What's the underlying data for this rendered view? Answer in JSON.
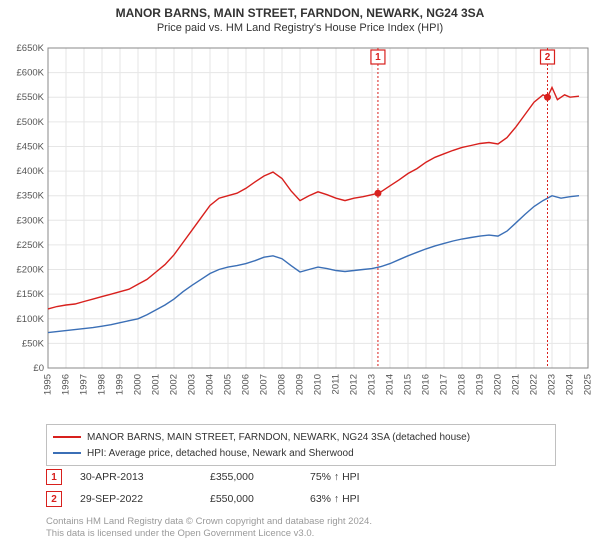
{
  "title": "MANOR BARNS, MAIN STREET, FARNDON, NEWARK, NG24 3SA",
  "subtitle": "Price paid vs. HM Land Registry's House Price Index (HPI)",
  "chart": {
    "type": "line",
    "background_color": "#ffffff",
    "grid_color": "#e6e6e6",
    "axis_color": "#888888",
    "y": {
      "min": 0,
      "max": 650000,
      "step": 50000,
      "labels": [
        "£0",
        "£50K",
        "£100K",
        "£150K",
        "£200K",
        "£250K",
        "£300K",
        "£350K",
        "£400K",
        "£450K",
        "£500K",
        "£550K",
        "£600K",
        "£650K"
      ]
    },
    "x": {
      "min": 1995,
      "max": 2025,
      "labels": [
        "1995",
        "1996",
        "1997",
        "1998",
        "1999",
        "2000",
        "2001",
        "2002",
        "2003",
        "2004",
        "2005",
        "2006",
        "2007",
        "2008",
        "2009",
        "2010",
        "2011",
        "2012",
        "2013",
        "2014",
        "2015",
        "2016",
        "2017",
        "2018",
        "2019",
        "2020",
        "2021",
        "2022",
        "2023",
        "2024",
        "2025"
      ]
    },
    "series": [
      {
        "id": "price",
        "label": "MANOR BARNS, MAIN STREET, FARNDON, NEWARK, NG24 3SA (detached house)",
        "color": "#d8201d",
        "line_width": 1.4,
        "data": [
          [
            1995.0,
            120000
          ],
          [
            1995.5,
            125000
          ],
          [
            1996.0,
            128000
          ],
          [
            1996.5,
            130000
          ],
          [
            1997.0,
            135000
          ],
          [
            1997.5,
            140000
          ],
          [
            1998.0,
            145000
          ],
          [
            1998.5,
            150000
          ],
          [
            1999.0,
            155000
          ],
          [
            1999.5,
            160000
          ],
          [
            2000.0,
            170000
          ],
          [
            2000.5,
            180000
          ],
          [
            2001.0,
            195000
          ],
          [
            2001.5,
            210000
          ],
          [
            2002.0,
            230000
          ],
          [
            2002.5,
            255000
          ],
          [
            2003.0,
            280000
          ],
          [
            2003.5,
            305000
          ],
          [
            2004.0,
            330000
          ],
          [
            2004.5,
            345000
          ],
          [
            2005.0,
            350000
          ],
          [
            2005.5,
            355000
          ],
          [
            2006.0,
            365000
          ],
          [
            2006.5,
            378000
          ],
          [
            2007.0,
            390000
          ],
          [
            2007.5,
            398000
          ],
          [
            2008.0,
            385000
          ],
          [
            2008.5,
            360000
          ],
          [
            2009.0,
            340000
          ],
          [
            2009.5,
            350000
          ],
          [
            2010.0,
            358000
          ],
          [
            2010.5,
            352000
          ],
          [
            2011.0,
            345000
          ],
          [
            2011.5,
            340000
          ],
          [
            2012.0,
            345000
          ],
          [
            2012.5,
            348000
          ],
          [
            2013.0,
            352000
          ],
          [
            2013.33,
            355000
          ],
          [
            2013.5,
            358000
          ],
          [
            2014.0,
            370000
          ],
          [
            2014.5,
            382000
          ],
          [
            2015.0,
            395000
          ],
          [
            2015.5,
            405000
          ],
          [
            2016.0,
            418000
          ],
          [
            2016.5,
            428000
          ],
          [
            2017.0,
            435000
          ],
          [
            2017.5,
            442000
          ],
          [
            2018.0,
            448000
          ],
          [
            2018.5,
            452000
          ],
          [
            2019.0,
            456000
          ],
          [
            2019.5,
            458000
          ],
          [
            2020.0,
            455000
          ],
          [
            2020.5,
            468000
          ],
          [
            2021.0,
            490000
          ],
          [
            2021.5,
            515000
          ],
          [
            2022.0,
            540000
          ],
          [
            2022.5,
            555000
          ],
          [
            2022.75,
            550000
          ],
          [
            2023.0,
            570000
          ],
          [
            2023.3,
            545000
          ],
          [
            2023.7,
            555000
          ],
          [
            2024.0,
            550000
          ],
          [
            2024.5,
            552000
          ]
        ]
      },
      {
        "id": "hpi",
        "label": "HPI: Average price, detached house, Newark and Sherwood",
        "color": "#3b6fb6",
        "line_width": 1.4,
        "data": [
          [
            1995.0,
            72000
          ],
          [
            1995.5,
            74000
          ],
          [
            1996.0,
            76000
          ],
          [
            1996.5,
            78000
          ],
          [
            1997.0,
            80000
          ],
          [
            1997.5,
            82000
          ],
          [
            1998.0,
            85000
          ],
          [
            1998.5,
            88000
          ],
          [
            1999.0,
            92000
          ],
          [
            1999.5,
            96000
          ],
          [
            2000.0,
            100000
          ],
          [
            2000.5,
            108000
          ],
          [
            2001.0,
            118000
          ],
          [
            2001.5,
            128000
          ],
          [
            2002.0,
            140000
          ],
          [
            2002.5,
            155000
          ],
          [
            2003.0,
            168000
          ],
          [
            2003.5,
            180000
          ],
          [
            2004.0,
            192000
          ],
          [
            2004.5,
            200000
          ],
          [
            2005.0,
            205000
          ],
          [
            2005.5,
            208000
          ],
          [
            2006.0,
            212000
          ],
          [
            2006.5,
            218000
          ],
          [
            2007.0,
            225000
          ],
          [
            2007.5,
            228000
          ],
          [
            2008.0,
            222000
          ],
          [
            2008.5,
            208000
          ],
          [
            2009.0,
            195000
          ],
          [
            2009.5,
            200000
          ],
          [
            2010.0,
            205000
          ],
          [
            2010.5,
            202000
          ],
          [
            2011.0,
            198000
          ],
          [
            2011.5,
            196000
          ],
          [
            2012.0,
            198000
          ],
          [
            2012.5,
            200000
          ],
          [
            2013.0,
            202000
          ],
          [
            2013.5,
            206000
          ],
          [
            2014.0,
            212000
          ],
          [
            2014.5,
            220000
          ],
          [
            2015.0,
            228000
          ],
          [
            2015.5,
            235000
          ],
          [
            2016.0,
            242000
          ],
          [
            2016.5,
            248000
          ],
          [
            2017.0,
            253000
          ],
          [
            2017.5,
            258000
          ],
          [
            2018.0,
            262000
          ],
          [
            2018.5,
            265000
          ],
          [
            2019.0,
            268000
          ],
          [
            2019.5,
            270000
          ],
          [
            2020.0,
            268000
          ],
          [
            2020.5,
            278000
          ],
          [
            2021.0,
            295000
          ],
          [
            2021.5,
            312000
          ],
          [
            2022.0,
            328000
          ],
          [
            2022.5,
            340000
          ],
          [
            2023.0,
            350000
          ],
          [
            2023.5,
            345000
          ],
          [
            2024.0,
            348000
          ],
          [
            2024.5,
            350000
          ]
        ]
      }
    ],
    "markers": [
      {
        "n": "1",
        "date": "30-APR-2013",
        "year": 2013.33,
        "price_num": 355000,
        "price": "£355,000",
        "pct": "75% ↑ HPI",
        "color": "#d8201d"
      },
      {
        "n": "2",
        "date": "29-SEP-2022",
        "year": 2022.75,
        "price_num": 550000,
        "price": "£550,000",
        "pct": "63% ↑ HPI",
        "color": "#d8201d"
      }
    ]
  },
  "legend": [
    {
      "color": "#d8201d",
      "text": "MANOR BARNS, MAIN STREET, FARNDON, NEWARK, NG24 3SA (detached house)"
    },
    {
      "color": "#3b6fb6",
      "text": "HPI: Average price, detached house, Newark and Sherwood"
    }
  ],
  "footnote_l1": "Contains HM Land Registry data © Crown copyright and database right 2024.",
  "footnote_l2": "This data is licensed under the Open Government Licence v3.0."
}
